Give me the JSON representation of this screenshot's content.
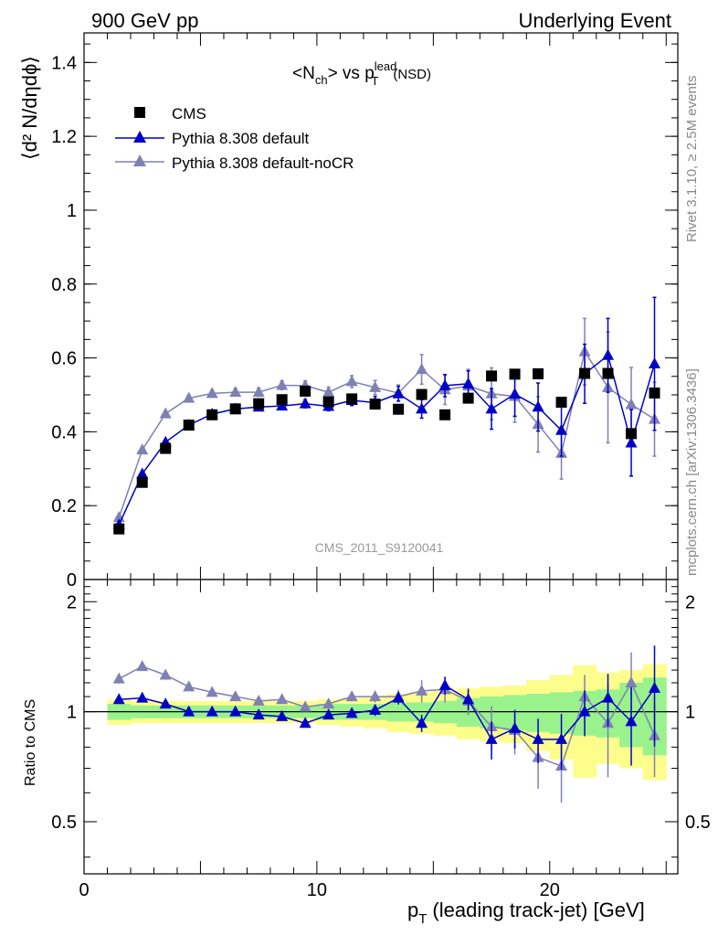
{
  "header": {
    "left": "900 GeV pp",
    "right": "Underlying Event"
  },
  "side_labels": {
    "rivet": "Rivet 3.1.10, ≥ 2.5M events",
    "mcplots": "mcplots.cern.ch [arXiv:1306.3436]"
  },
  "watermark": "CMS_2011_S9120041",
  "title": {
    "lhs": "<N",
    "lhs_sub": "ch",
    "mid": "> vs p",
    "sup": "lead",
    "sub": "T",
    "tail": "(NSD)"
  },
  "ylabel_main": "⟨d² N/dηdϕ⟩",
  "ylabel_ratio": "Ratio to CMS",
  "xlabel": "p",
  "xlabel_sub": "T",
  "xlabel_tail": "(leading track-jet) [GeV]",
  "colors": {
    "cms": "#000000",
    "default": "#0000c8",
    "nocr": "#8080b4",
    "band_inner": "#99f28c",
    "band_outer": "#fdfd8b"
  },
  "chart_data": {
    "type": "scatter",
    "x": [
      1.5,
      2.5,
      3.5,
      4.5,
      5.5,
      6.5,
      7.5,
      8.5,
      9.5,
      10.5,
      11.5,
      12.5,
      13.5,
      14.5,
      15.5,
      16.5,
      17.5,
      18.5,
      19.5,
      20.5,
      21.5,
      22.5,
      23.5,
      24.5
    ],
    "xlim": [
      0,
      25.5
    ],
    "main": {
      "ylim": [
        0,
        1.48
      ],
      "yticks": [
        0,
        0.2,
        0.4,
        0.6,
        0.8,
        1,
        1.2,
        1.4
      ],
      "ytick_labels": [
        "0",
        "0.2",
        "0.4",
        "0.6",
        "0.8",
        "1",
        "1.2",
        "1.4"
      ]
    },
    "ratio": {
      "ylim": [
        0.36,
        2.3
      ],
      "yticks": [
        0.5,
        1,
        2
      ],
      "ytick_labels": [
        "0.5",
        "1",
        "2"
      ]
    },
    "xticks": [
      0,
      10,
      20
    ],
    "xtick_labels": [
      "0",
      "10",
      "20"
    ],
    "series": [
      {
        "name": "CMS",
        "kind": "data",
        "values": [
          0.137,
          0.263,
          0.355,
          0.418,
          0.446,
          0.462,
          0.476,
          0.487,
          0.51,
          0.481,
          0.489,
          0.475,
          0.461,
          0.501,
          0.446,
          0.491,
          0.551,
          0.556,
          0.557,
          0.48,
          0.558,
          0.558,
          0.395,
          0.505
        ],
        "band_inner": [
          0.05,
          0.04,
          0.04,
          0.04,
          0.04,
          0.04,
          0.04,
          0.04,
          0.04,
          0.05,
          0.05,
          0.05,
          0.06,
          0.06,
          0.07,
          0.09,
          0.1,
          0.11,
          0.12,
          0.13,
          0.14,
          0.15,
          0.2,
          0.24
        ],
        "band_outer": [
          0.08,
          0.07,
          0.07,
          0.07,
          0.07,
          0.07,
          0.07,
          0.07,
          0.07,
          0.08,
          0.09,
          0.1,
          0.12,
          0.13,
          0.14,
          0.16,
          0.17,
          0.18,
          0.22,
          0.26,
          0.34,
          0.28,
          0.3,
          0.35
        ]
      },
      {
        "name": "Pythia 8.308 default",
        "kind": "mc",
        "values": [
          0.148,
          0.286,
          0.372,
          0.418,
          0.448,
          0.462,
          0.467,
          0.47,
          0.476,
          0.469,
          0.485,
          0.479,
          0.503,
          0.462,
          0.525,
          0.53,
          0.462,
          0.502,
          0.467,
          0.404,
          0.557,
          0.607,
          0.37,
          0.584
        ],
        "errors": [
          0.004,
          0.005,
          0.006,
          0.007,
          0.008,
          0.008,
          0.009,
          0.01,
          0.011,
          0.012,
          0.014,
          0.017,
          0.02,
          0.025,
          0.03,
          0.035,
          0.055,
          0.06,
          0.065,
          0.07,
          0.08,
          0.1,
          0.09,
          0.18
        ],
        "ratio": [
          1.08,
          1.09,
          1.05,
          1.0,
          1.0,
          1.0,
          0.98,
          0.97,
          0.93,
          0.98,
          0.99,
          1.01,
          1.09,
          0.93,
          1.18,
          1.08,
          0.84,
          0.9,
          0.84,
          0.84,
          1.0,
          1.09,
          0.94,
          1.16
        ]
      },
      {
        "name": "Pythia 8.308 default-noCR",
        "kind": "mc",
        "values": [
          0.168,
          0.351,
          0.449,
          0.491,
          0.504,
          0.507,
          0.507,
          0.526,
          0.525,
          0.507,
          0.536,
          0.52,
          0.505,
          0.569,
          0.514,
          0.524,
          0.503,
          0.496,
          0.42,
          0.342,
          0.617,
          0.52,
          0.474,
          0.434
        ],
        "errors": [
          0.005,
          0.006,
          0.007,
          0.008,
          0.009,
          0.01,
          0.011,
          0.012,
          0.013,
          0.014,
          0.016,
          0.019,
          0.022,
          0.04,
          0.04,
          0.045,
          0.07,
          0.07,
          0.075,
          0.07,
          0.09,
          0.15,
          0.1,
          0.1
        ],
        "ratio": [
          1.23,
          1.33,
          1.26,
          1.17,
          1.13,
          1.1,
          1.07,
          1.08,
          1.03,
          1.05,
          1.1,
          1.1,
          1.1,
          1.14,
          1.15,
          1.07,
          0.91,
          0.89,
          0.75,
          0.71,
          1.1,
          0.93,
          1.2,
          0.86
        ]
      }
    ]
  }
}
